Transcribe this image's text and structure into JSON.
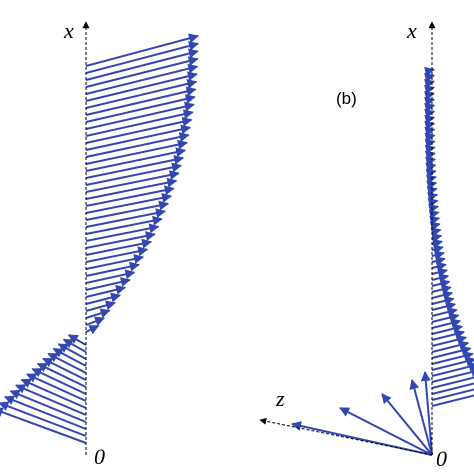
{
  "panel_a": {
    "axis_label": "x",
    "origin_label": "0"
  },
  "panel_b": {
    "panel_label": "(b)",
    "axis_label": "x",
    "z_axis_label": "z",
    "origin_label": "0"
  }
}
